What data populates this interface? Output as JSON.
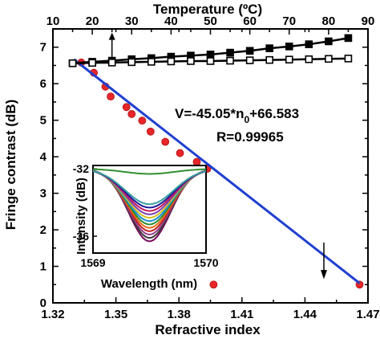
{
  "chart_data": [
    {
      "type": "scatter",
      "title": "",
      "xlabel": "Refractive index",
      "ylabel": "Fringe contrast (dB)",
      "x2label": "Temperature (ºC)",
      "xlim": [
        1.32,
        1.47
      ],
      "ylim": [
        0,
        7.5
      ],
      "x2lim": [
        10,
        90
      ],
      "xticks": [
        "1.32",
        "1.35",
        "1.38",
        "1.41",
        "1.44",
        "1.47"
      ],
      "yticks": [
        "0",
        "1",
        "2",
        "3",
        "4",
        "5",
        "6",
        "7"
      ],
      "x2ticks": [
        "10",
        "20",
        "30",
        "40",
        "50",
        "60",
        "70",
        "80",
        "90"
      ],
      "grid": false,
      "annotations": {
        "equation": "V=-45.05*n",
        "subscript": "0",
        "equation_tail": "+66.583",
        "r_value": "R=0.99965"
      },
      "series": [
        {
          "marker": "red-circle",
          "axis": "refractive-index",
          "color": "#e8262a",
          "x": [
            1.3335,
            1.3395,
            1.345,
            1.3475,
            1.355,
            1.3575,
            1.3625,
            1.3665,
            1.3735,
            1.3805,
            1.3885,
            1.3935,
            1.3965,
            1.466
          ],
          "y": [
            6.58,
            6.3,
            5.92,
            5.65,
            5.36,
            5.17,
            4.99,
            4.69,
            4.41,
            4.1,
            3.86,
            3.67,
            0.5,
            0.5
          ]
        },
        {
          "marker": "line",
          "axis": "refractive-index",
          "color": "#1f3fd0",
          "x": [
            1.33,
            1.466
          ],
          "y": [
            6.665,
            0.538
          ]
        },
        {
          "marker": "filled-square",
          "axis": "temperature",
          "color": "#000000",
          "x": [
            15,
            20,
            25,
            30,
            35,
            40,
            45,
            50,
            55,
            60,
            65,
            70,
            75,
            80,
            85
          ],
          "y": [
            6.56,
            6.6,
            6.63,
            6.67,
            6.7,
            6.74,
            6.77,
            6.8,
            6.85,
            6.9,
            6.97,
            7.02,
            7.08,
            7.16,
            7.25
          ]
        },
        {
          "marker": "open-square",
          "axis": "temperature",
          "color": "#000000",
          "x": [
            15,
            20,
            25,
            30,
            35,
            40,
            45,
            50,
            55,
            60,
            65,
            70,
            75,
            80,
            85
          ],
          "y": [
            6.56,
            6.57,
            6.58,
            6.59,
            6.6,
            6.61,
            6.62,
            6.62,
            6.63,
            6.64,
            6.65,
            6.66,
            6.67,
            6.68,
            6.69
          ]
        }
      ]
    },
    {
      "type": "line",
      "title": "",
      "xlabel": "Wavelength (nm)",
      "ylabel": "Intensity (dB)",
      "xlim": [
        1569,
        1570
      ],
      "ylim": [
        -37,
        -31.8
      ],
      "xticks": [
        "1569",
        "1570"
      ],
      "yticks": [
        "-32",
        "-36"
      ],
      "dip_center": 1569.5,
      "baseline": -32.0,
      "series_colors": [
        "#7a0a5a",
        "#3a3a3a",
        "#9b3d8e",
        "#c02020",
        "#e66a1a",
        "#2a8a2a",
        "#1a8fd0",
        "#d4c021",
        "#7b3fb0",
        "#c2185b",
        "#1a1a9a",
        "#3aa0a0",
        "#2f8f2f"
      ],
      "series_depths": [
        -36.3,
        -36.1,
        -35.9,
        -35.7,
        -35.5,
        -35.3,
        -35.1,
        -34.9,
        -34.7,
        -34.5,
        -34.3,
        -34.1,
        -32.3
      ]
    }
  ]
}
